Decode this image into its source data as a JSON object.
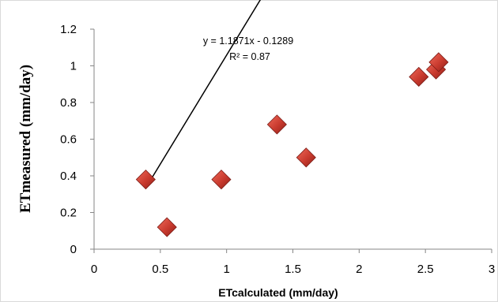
{
  "chart_data": {
    "type": "scatter",
    "xlabel": "ETcalculated (mm/day)",
    "ylabel": "ETmeasured (mm/day)",
    "xlim": [
      0,
      3
    ],
    "ylim": [
      0,
      1.2
    ],
    "x_ticks": [
      "0",
      "0.5",
      "1",
      "1.5",
      "2",
      "2.5",
      "3"
    ],
    "y_ticks": [
      "0",
      "0.2",
      "0.4",
      "0.6",
      "0.8",
      "1",
      "1.2"
    ],
    "grid": false,
    "legend": "none",
    "marker": "diamond",
    "marker_color": "#c0392b",
    "points": [
      {
        "x": 0.39,
        "y": 0.38
      },
      {
        "x": 0.55,
        "y": 0.12
      },
      {
        "x": 0.96,
        "y": 0.38
      },
      {
        "x": 1.38,
        "y": 0.68
      },
      {
        "x": 1.6,
        "y": 0.5
      },
      {
        "x": 2.45,
        "y": 0.94
      },
      {
        "x": 2.58,
        "y": 0.98
      },
      {
        "x": 2.6,
        "y": 1.02
      }
    ],
    "trendline": {
      "slope": 1.1871,
      "intercept": -0.1289,
      "x_range": [
        0.39,
        2.6
      ],
      "equation_label": "y = 1.1871x - 0.1289",
      "r2_label": "R² = 0.87"
    }
  }
}
